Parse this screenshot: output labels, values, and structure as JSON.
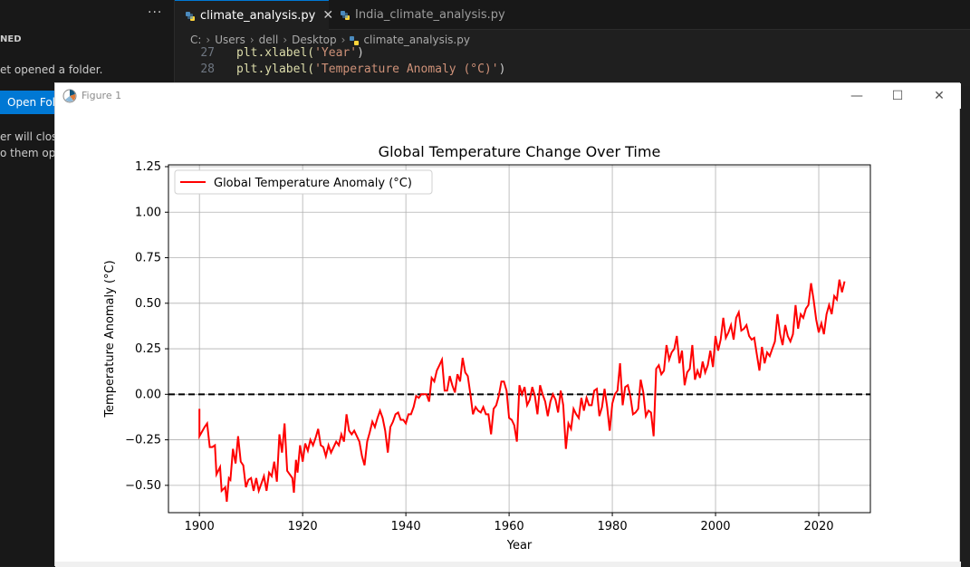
{
  "sidebar": {
    "more": "···",
    "section_label": "NED",
    "no_folder_text": "et opened a folder.",
    "open_button": "Open Fol",
    "hint_line1": "er will clos",
    "hint_line2": "o them ope"
  },
  "tabs": [
    {
      "label": "climate_analysis.py",
      "close": "✕"
    },
    {
      "label": "India_climate_analysis.py"
    }
  ],
  "breadcrumb": {
    "parts": [
      "C:",
      "Users",
      "dell",
      "Desktop"
    ],
    "file": "climate_analysis.py"
  },
  "code": {
    "line27_num": "27",
    "line27_pre": "plt.xlabel(",
    "line27_str": "'Year'",
    "line27_post": ")",
    "line28_num": "28",
    "line28_pre": "plt.ylabel(",
    "line28_str": "'Temperature Anomaly (°C)'",
    "line28_post": ")"
  },
  "figure": {
    "title": "Figure 1",
    "minimize": "—",
    "maximize": "☐",
    "close": "✕"
  },
  "colors": {
    "line": "#ff0000",
    "zero_line": "#000000",
    "grid": "#b0b0b0",
    "accent": "#0078d4"
  },
  "chart_data": {
    "type": "line",
    "title": "Global Temperature Change Over Time",
    "xlabel": "Year",
    "ylabel": "Temperature Anomaly (°C)",
    "xlim": [
      1894,
      2030
    ],
    "ylim": [
      -0.65,
      1.26
    ],
    "xticks": [
      1900,
      1920,
      1940,
      1960,
      1980,
      2000,
      2020
    ],
    "yticks": [
      -0.5,
      -0.25,
      0.0,
      0.25,
      0.5,
      0.75,
      1.0,
      1.25
    ],
    "ytick_labels": [
      "−0.50",
      "−0.25",
      "0.00",
      "0.25",
      "0.50",
      "0.75",
      "1.00",
      "1.25"
    ],
    "grid": true,
    "legend_position": "top-left",
    "reference_line": {
      "y": 0.0,
      "style": "dashed",
      "color": "#000000"
    },
    "series": [
      {
        "name": "Global Temperature Anomaly (°C)",
        "color": "#ff0000",
        "points": [
          [
            1900,
            -0.08
          ],
          [
            1900,
            -0.23
          ],
          [
            1901,
            -0.18
          ],
          [
            1901.5,
            -0.16
          ],
          [
            1902,
            -0.29
          ],
          [
            1902.5,
            -0.29
          ],
          [
            1903,
            -0.28
          ],
          [
            1903.3,
            -0.44
          ],
          [
            1904,
            -0.4
          ],
          [
            1904.3,
            -0.53
          ],
          [
            1905,
            -0.51
          ],
          [
            1905.3,
            -0.59
          ],
          [
            1905.7,
            -0.46
          ],
          [
            1906,
            -0.47
          ],
          [
            1906.5,
            -0.3
          ],
          [
            1907,
            -0.38
          ],
          [
            1907.5,
            -0.23
          ],
          [
            1908,
            -0.37
          ],
          [
            1908.5,
            -0.39
          ],
          [
            1909,
            -0.51
          ],
          [
            1909.5,
            -0.47
          ],
          [
            1910,
            -0.46
          ],
          [
            1910.5,
            -0.53
          ],
          [
            1911,
            -0.46
          ],
          [
            1911.5,
            -0.53
          ],
          [
            1912,
            -0.49
          ],
          [
            1912.5,
            -0.45
          ],
          [
            1913,
            -0.53
          ],
          [
            1913.5,
            -0.43
          ],
          [
            1914,
            -0.45
          ],
          [
            1914.5,
            -0.37
          ],
          [
            1915,
            -0.48
          ],
          [
            1915.5,
            -0.22
          ],
          [
            1916,
            -0.32
          ],
          [
            1916.5,
            -0.16
          ],
          [
            1917,
            -0.42
          ],
          [
            1918,
            -0.46
          ],
          [
            1918.3,
            -0.54
          ],
          [
            1918.7,
            -0.36
          ],
          [
            1919,
            -0.43
          ],
          [
            1919.5,
            -0.28
          ],
          [
            1920,
            -0.37
          ],
          [
            1920.5,
            -0.27
          ],
          [
            1921,
            -0.31
          ],
          [
            1921.5,
            -0.25
          ],
          [
            1922,
            -0.28
          ],
          [
            1922.5,
            -0.24
          ],
          [
            1923,
            -0.19
          ],
          [
            1923.5,
            -0.28
          ],
          [
            1924,
            -0.29
          ],
          [
            1924.5,
            -0.34
          ],
          [
            1925,
            -0.28
          ],
          [
            1925.5,
            -0.32
          ],
          [
            1926,
            -0.29
          ],
          [
            1926.5,
            -0.26
          ],
          [
            1927,
            -0.28
          ],
          [
            1927.5,
            -0.22
          ],
          [
            1928,
            -0.26
          ],
          [
            1928.5,
            -0.11
          ],
          [
            1929,
            -0.2
          ],
          [
            1929.5,
            -0.22
          ],
          [
            1930,
            -0.2
          ],
          [
            1930.5,
            -0.23
          ],
          [
            1931,
            -0.26
          ],
          [
            1931.5,
            -0.34
          ],
          [
            1932,
            -0.39
          ],
          [
            1932.5,
            -0.26
          ],
          [
            1933,
            -0.21
          ],
          [
            1933.5,
            -0.15
          ],
          [
            1934,
            -0.18
          ],
          [
            1934.5,
            -0.13
          ],
          [
            1935,
            -0.09
          ],
          [
            1935.5,
            -0.13
          ],
          [
            1936,
            -0.2
          ],
          [
            1936.5,
            -0.32
          ],
          [
            1937,
            -0.18
          ],
          [
            1937.5,
            -0.15
          ],
          [
            1938,
            -0.11
          ],
          [
            1938.5,
            -0.1
          ],
          [
            1939,
            -0.14
          ],
          [
            1939.5,
            -0.14
          ],
          [
            1940,
            -0.16
          ],
          [
            1940.5,
            -0.11
          ],
          [
            1941,
            -0.11
          ],
          [
            1941.5,
            -0.07
          ],
          [
            1942,
            -0.01
          ],
          [
            1942.5,
            -0.02
          ],
          [
            1943,
            0.0
          ],
          [
            1943.5,
            0.0
          ],
          [
            1944,
            0.0
          ],
          [
            1944.5,
            -0.04
          ],
          [
            1945,
            0.09
          ],
          [
            1945.5,
            0.07
          ],
          [
            1946,
            0.13
          ],
          [
            1946.5,
            0.16
          ],
          [
            1947,
            0.19
          ],
          [
            1947.5,
            0.02
          ],
          [
            1948,
            0.02
          ],
          [
            1948.5,
            0.1
          ],
          [
            1949,
            0.05
          ],
          [
            1949.5,
            0.01
          ],
          [
            1950,
            0.11
          ],
          [
            1950.5,
            0.07
          ],
          [
            1951,
            0.2
          ],
          [
            1951.5,
            0.12
          ],
          [
            1952,
            0.1
          ],
          [
            1952.5,
            0.0
          ],
          [
            1953,
            -0.11
          ],
          [
            1953.5,
            -0.07
          ],
          [
            1954,
            -0.09
          ],
          [
            1954.5,
            -0.1
          ],
          [
            1955,
            -0.07
          ],
          [
            1955.5,
            -0.11
          ],
          [
            1956,
            -0.11
          ],
          [
            1956.5,
            -0.22
          ],
          [
            1957,
            -0.08
          ],
          [
            1957.5,
            -0.06
          ],
          [
            1958,
            -0.01
          ],
          [
            1958.5,
            0.07
          ],
          [
            1959,
            0.07
          ],
          [
            1959.5,
            0.02
          ],
          [
            1960,
            -0.13
          ],
          [
            1960.5,
            -0.14
          ],
          [
            1961,
            -0.17
          ],
          [
            1961.5,
            -0.26
          ],
          [
            1962,
            0.05
          ],
          [
            1962.5,
            0.0
          ],
          [
            1963,
            0.04
          ],
          [
            1963.5,
            -0.06
          ],
          [
            1964,
            -0.03
          ],
          [
            1964.5,
            0.04
          ],
          [
            1965,
            -0.01
          ],
          [
            1965.5,
            -0.11
          ],
          [
            1966,
            0.05
          ],
          [
            1966.5,
            0.0
          ],
          [
            1967,
            -0.04
          ],
          [
            1967.5,
            -0.12
          ],
          [
            1968,
            -0.04
          ],
          [
            1968.5,
            0.0
          ],
          [
            1969,
            -0.03
          ],
          [
            1969.5,
            -0.1
          ],
          [
            1970,
            0.02
          ],
          [
            1970.5,
            -0.06
          ],
          [
            1971,
            -0.3
          ],
          [
            1971.5,
            -0.16
          ],
          [
            1972,
            -0.19
          ],
          [
            1972.5,
            -0.08
          ],
          [
            1973,
            -0.11
          ],
          [
            1973.5,
            -0.13
          ],
          [
            1974,
            -0.02
          ],
          [
            1974.5,
            -0.09
          ],
          [
            1975,
            -0.02
          ],
          [
            1975.5,
            -0.06
          ],
          [
            1976,
            -0.06
          ],
          [
            1976.5,
            0.02
          ],
          [
            1977,
            0.03
          ],
          [
            1977.5,
            -0.12
          ],
          [
            1978,
            -0.07
          ],
          [
            1978.5,
            0.03
          ],
          [
            1979,
            -0.07
          ],
          [
            1979.5,
            -0.2
          ],
          [
            1980,
            -0.05
          ],
          [
            1980.5,
            0.0
          ],
          [
            1981,
            0.02
          ],
          [
            1981.5,
            0.17
          ],
          [
            1982,
            -0.06
          ],
          [
            1982.5,
            0.04
          ],
          [
            1983,
            0.05
          ],
          [
            1983.5,
            -0.01
          ],
          [
            1984,
            -0.11
          ],
          [
            1984.5,
            -0.1
          ],
          [
            1985,
            -0.08
          ],
          [
            1985.5,
            0.08
          ],
          [
            1986,
            0.01
          ],
          [
            1986.5,
            -0.12
          ],
          [
            1987,
            -0.09
          ],
          [
            1987.5,
            -0.1
          ],
          [
            1988,
            -0.23
          ],
          [
            1988.5,
            0.14
          ],
          [
            1989,
            0.16
          ],
          [
            1989.5,
            0.11
          ],
          [
            1990,
            0.13
          ],
          [
            1990.5,
            0.27
          ],
          [
            1991,
            0.19
          ],
          [
            1991.5,
            0.23
          ],
          [
            1992,
            0.25
          ],
          [
            1992.5,
            0.32
          ],
          [
            1993,
            0.17
          ],
          [
            1993.5,
            0.24
          ],
          [
            1994,
            0.05
          ],
          [
            1994.5,
            0.12
          ],
          [
            1995,
            0.14
          ],
          [
            1995.5,
            0.27
          ],
          [
            1996,
            0.08
          ],
          [
            1996.5,
            0.13
          ],
          [
            1997,
            0.09
          ],
          [
            1997.5,
            0.18
          ],
          [
            1998,
            0.12
          ],
          [
            1998.5,
            0.16
          ],
          [
            1999,
            0.24
          ],
          [
            1999.5,
            0.15
          ],
          [
            2000,
            0.32
          ],
          [
            2000.5,
            0.24
          ],
          [
            2001,
            0.3
          ],
          [
            2001.5,
            0.42
          ],
          [
            2002,
            0.31
          ],
          [
            2002.5,
            0.34
          ],
          [
            2003,
            0.38
          ],
          [
            2003.5,
            0.3
          ],
          [
            2004,
            0.42
          ],
          [
            2004.5,
            0.45
          ],
          [
            2005,
            0.35
          ],
          [
            2005.5,
            0.36
          ],
          [
            2006,
            0.38
          ],
          [
            2006.5,
            0.32
          ],
          [
            2007,
            0.3
          ],
          [
            2007.5,
            0.31
          ],
          [
            2008,
            0.22
          ],
          [
            2008.5,
            0.13
          ],
          [
            2009,
            0.26
          ],
          [
            2009.5,
            0.17
          ],
          [
            2010,
            0.23
          ],
          [
            2010.5,
            0.21
          ],
          [
            2011,
            0.25
          ],
          [
            2011.5,
            0.29
          ],
          [
            2012,
            0.44
          ],
          [
            2012.5,
            0.33
          ],
          [
            2013,
            0.27
          ],
          [
            2013.5,
            0.38
          ],
          [
            2014,
            0.32
          ],
          [
            2014.5,
            0.29
          ],
          [
            2015,
            0.33
          ],
          [
            2015.5,
            0.49
          ],
          [
            2016,
            0.36
          ],
          [
            2016.5,
            0.44
          ],
          [
            2017,
            0.42
          ],
          [
            2017.5,
            0.47
          ],
          [
            2018,
            0.49
          ],
          [
            2018.5,
            0.61
          ],
          [
            2019,
            0.52
          ],
          [
            2019.5,
            0.41
          ],
          [
            2020,
            0.34
          ],
          [
            2020.5,
            0.39
          ],
          [
            2021,
            0.33
          ],
          [
            2021.5,
            0.44
          ],
          [
            2022,
            0.49
          ],
          [
            2022.5,
            0.44
          ],
          [
            2023,
            0.54
          ],
          [
            2023.5,
            0.52
          ],
          [
            2024,
            0.63
          ],
          [
            2024.5,
            0.56
          ],
          [
            2025,
            0.62
          ]
        ]
      }
    ]
  }
}
